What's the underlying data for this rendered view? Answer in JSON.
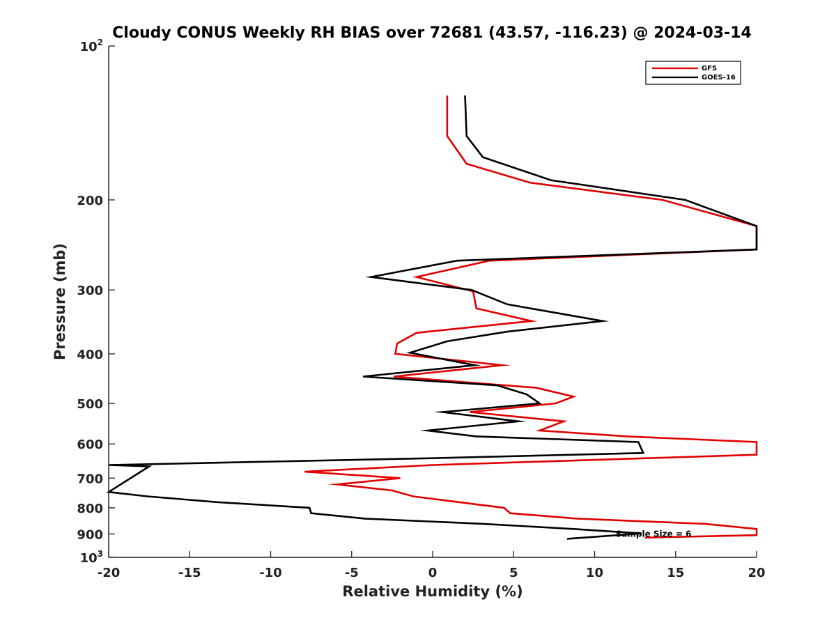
{
  "chart_data": {
    "type": "line",
    "title": "Cloudy CONUS Weekly RH BIAS over 72681 (43.57, -116.23) @ 2024-03-14",
    "xlabel": "Relative Humidity (%)",
    "ylabel": "Pressure (mb)",
    "xlim": [
      -20,
      20
    ],
    "ylim": [
      100,
      1000
    ],
    "yscale": "log",
    "y_reversed": true,
    "grid": false,
    "legend_position": "top-right",
    "x_ticks": [
      -20,
      -15,
      -10,
      -5,
      0,
      5,
      10,
      15,
      20
    ],
    "x_tick_labels": [
      "-20",
      "-15",
      "-10",
      "-5",
      "0",
      "5",
      "10",
      "15",
      "20"
    ],
    "y_ticks": [
      {
        "value": 100,
        "base": "10",
        "exp": "2"
      },
      {
        "value": 200,
        "label": "200"
      },
      {
        "value": 300,
        "label": "300"
      },
      {
        "value": 400,
        "label": "400"
      },
      {
        "value": 500,
        "label": "500"
      },
      {
        "value": 600,
        "label": "600"
      },
      {
        "value": 700,
        "label": "700"
      },
      {
        "value": 800,
        "label": "800"
      },
      {
        "value": 900,
        "label": "900"
      },
      {
        "value": 1000,
        "base": "10",
        "exp": "3"
      }
    ],
    "series": [
      {
        "name": "GFS",
        "color": "#e00000",
        "points": [
          [
            0.9,
            125
          ],
          [
            0.9,
            150
          ],
          [
            2.1,
            170
          ],
          [
            6.0,
            185
          ],
          [
            14.2,
            200
          ],
          [
            20,
            225
          ],
          [
            20,
            250
          ],
          [
            3.5,
            263
          ],
          [
            -1.0,
            283
          ],
          [
            2.5,
            302
          ],
          [
            2.7,
            326
          ],
          [
            6.1,
            345
          ],
          [
            -1.0,
            364
          ],
          [
            -2.2,
            382
          ],
          [
            -2.3,
            400
          ],
          [
            4.3,
            421
          ],
          [
            -2.4,
            443
          ],
          [
            6.4,
            466
          ],
          [
            8.7,
            485
          ],
          [
            7.6,
            500
          ],
          [
            2.3,
            520
          ],
          [
            8.1,
            542
          ],
          [
            6.6,
            565
          ],
          [
            12.0,
            580
          ],
          [
            20,
            595
          ],
          [
            20,
            630
          ],
          [
            0,
            660
          ],
          [
            -7.9,
            680
          ],
          [
            -2.0,
            700
          ],
          [
            -5.9,
            720
          ],
          [
            -2.5,
            740
          ],
          [
            -1.2,
            760
          ],
          [
            4.4,
            800
          ],
          [
            4.8,
            820
          ],
          [
            8.9,
            840
          ],
          [
            16.8,
            860
          ],
          [
            20,
            880
          ],
          [
            20,
            905
          ],
          [
            13.1,
            915
          ]
        ]
      },
      {
        "name": "GOES-16",
        "color": "#000000",
        "points": [
          [
            2.0,
            125
          ],
          [
            2.1,
            150
          ],
          [
            3.1,
            165
          ],
          [
            7.3,
            183
          ],
          [
            15.6,
            200
          ],
          [
            20,
            225
          ],
          [
            20,
            250
          ],
          [
            1.5,
            263
          ],
          [
            -3.8,
            283
          ],
          [
            2.4,
            300
          ],
          [
            4.6,
            320
          ],
          [
            10.5,
            345
          ],
          [
            4.6,
            362
          ],
          [
            0.9,
            378
          ],
          [
            -1.4,
            398
          ],
          [
            2.6,
            421
          ],
          [
            -4.3,
            443
          ],
          [
            4.0,
            461
          ],
          [
            5.8,
            480
          ],
          [
            6.6,
            500
          ],
          [
            0.6,
            520
          ],
          [
            5.3,
            542
          ],
          [
            -0.3,
            565
          ],
          [
            2.7,
            580
          ],
          [
            12.7,
            595
          ],
          [
            13.0,
            625
          ],
          [
            0,
            640
          ],
          [
            -20,
            660
          ],
          [
            -17.5,
            664
          ],
          [
            -20,
            745
          ],
          [
            -17.6,
            760
          ],
          [
            -13.3,
            780
          ],
          [
            -7.6,
            800
          ],
          [
            -7.5,
            820
          ],
          [
            -4.2,
            840
          ],
          [
            3.1,
            860
          ],
          [
            8.7,
            880
          ],
          [
            12.9,
            898
          ],
          [
            8.3,
            920
          ]
        ]
      }
    ],
    "annotations": [
      {
        "text": "Sample Size = 6",
        "x": 12.5,
        "y": 900
      }
    ]
  }
}
